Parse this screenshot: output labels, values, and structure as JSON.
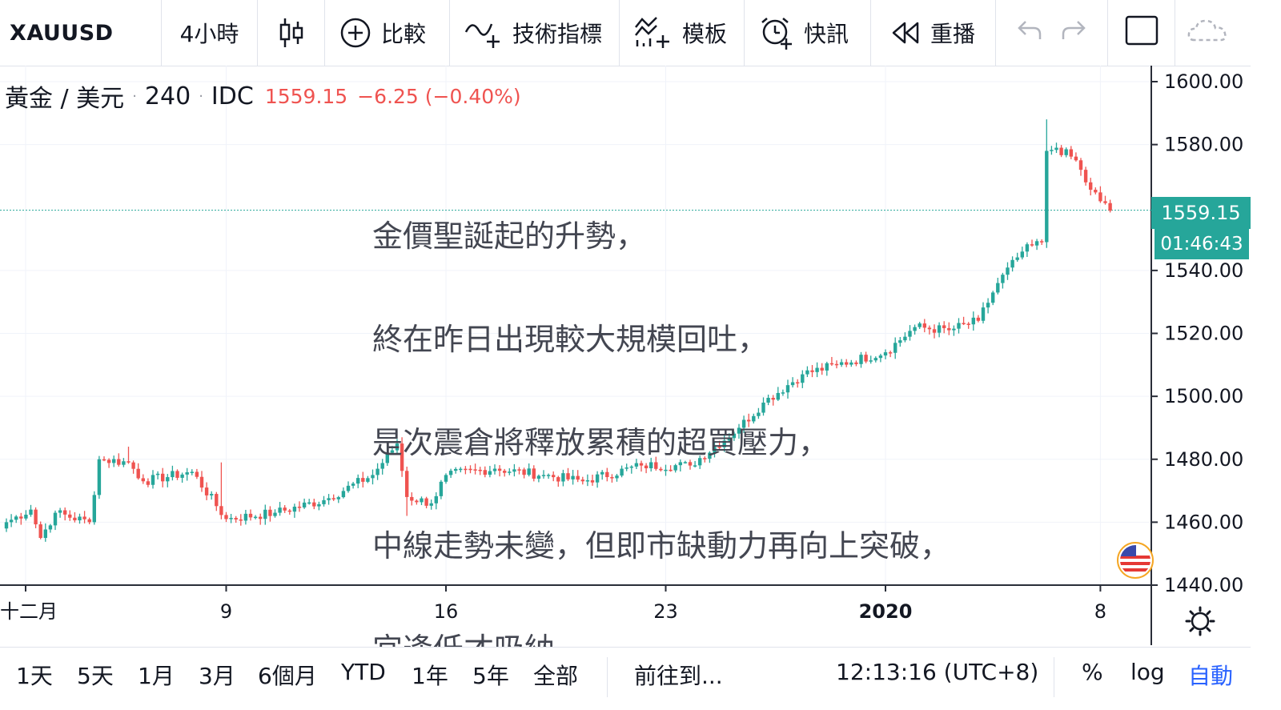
{
  "toolbar": {
    "symbol": "XAUUSD",
    "interval": "4小時",
    "compare": "比較",
    "indicators": "技術指標",
    "templates": "模板",
    "alerts": "快訊",
    "replay": "重播"
  },
  "legend": {
    "name": "黃金 / 美元",
    "interval": "240",
    "source": "IDC",
    "price": "1559.15",
    "change": "−6.25 (−0.40%)"
  },
  "annotation": {
    "lines": [
      "金價聖誕起的升勢，",
      "終在昨日出現較大規模回吐，",
      "是次震倉將釋放累積的超買壓力，",
      "中線走勢未變，但即市缺動力再向上突破，",
      "宜逢低才吸納。"
    ]
  },
  "price_badge": {
    "price": "1559.15",
    "countdown": "01:46:43"
  },
  "bottom": {
    "ranges": [
      "1天",
      "5天",
      "1月",
      "3月",
      "6個月",
      "YTD",
      "1年",
      "5年",
      "全部"
    ],
    "goto": "前往到...",
    "clock": "12:13:16 (UTC+8)",
    "percent": "%",
    "log": "log",
    "auto": "自動"
  },
  "colors": {
    "up": "#26a69a",
    "down": "#ef5350",
    "accent": "#2962ff",
    "badge": "#26a69a"
  },
  "chart_data": {
    "type": "candlestick",
    "y_ticks": [
      "1600.00",
      "1580.00",
      "1540.00",
      "1520.00",
      "1500.00",
      "1480.00",
      "1460.00",
      "1440.00"
    ],
    "ylim": [
      1440,
      1600
    ],
    "x_ticks": [
      {
        "label": "十二月",
        "bar": 0,
        "bold": false
      },
      {
        "label": "9",
        "bar": 45,
        "bold": false
      },
      {
        "label": "16",
        "bar": 90,
        "bold": false
      },
      {
        "label": "23",
        "bar": 135,
        "bold": false
      },
      {
        "label": "2020",
        "bar": 180,
        "bold": true
      },
      {
        "label": "8",
        "bar": 224,
        "bold": false
      }
    ],
    "last_price": 1559.15,
    "anchors": [
      {
        "bar": 0,
        "price": 1460
      },
      {
        "bar": 5,
        "price": 1464
      },
      {
        "bar": 7,
        "price": 1455
      },
      {
        "bar": 10,
        "price": 1463
      },
      {
        "bar": 17,
        "price": 1460
      },
      {
        "bar": 19,
        "price": 1480
      },
      {
        "bar": 25,
        "price": 1479
      },
      {
        "bar": 28,
        "price": 1473
      },
      {
        "bar": 38,
        "price": 1476
      },
      {
        "bar": 45,
        "price": 1461
      },
      {
        "bar": 55,
        "price": 1463
      },
      {
        "bar": 65,
        "price": 1467
      },
      {
        "bar": 75,
        "price": 1475
      },
      {
        "bar": 80,
        "price": 1485
      },
      {
        "bar": 82,
        "price": 1468
      },
      {
        "bar": 87,
        "price": 1466
      },
      {
        "bar": 90,
        "price": 1475
      },
      {
        "bar": 100,
        "price": 1477
      },
      {
        "bar": 110,
        "price": 1475
      },
      {
        "bar": 118,
        "price": 1473
      },
      {
        "bar": 130,
        "price": 1478
      },
      {
        "bar": 140,
        "price": 1478
      },
      {
        "bar": 150,
        "price": 1490
      },
      {
        "bar": 155,
        "price": 1498
      },
      {
        "bar": 163,
        "price": 1507
      },
      {
        "bar": 170,
        "price": 1510
      },
      {
        "bar": 180,
        "price": 1514
      },
      {
        "bar": 186,
        "price": 1522
      },
      {
        "bar": 193,
        "price": 1521
      },
      {
        "bar": 199,
        "price": 1524
      },
      {
        "bar": 203,
        "price": 1536
      },
      {
        "bar": 208,
        "price": 1546
      },
      {
        "bar": 212,
        "price": 1549
      },
      {
        "bar": 213,
        "price": 1578
      },
      {
        "bar": 215,
        "price": 1579
      },
      {
        "bar": 219,
        "price": 1575
      },
      {
        "bar": 221,
        "price": 1568
      },
      {
        "bar": 224,
        "price": 1562
      },
      {
        "bar": 226,
        "price": 1559
      }
    ],
    "spikes": [
      {
        "bar": 25,
        "high": 1484
      },
      {
        "bar": 44,
        "high": 1479
      },
      {
        "bar": 81,
        "high": 1487
      },
      {
        "bar": 82,
        "low": 1462
      },
      {
        "bar": 213,
        "high": 1588
      }
    ]
  }
}
